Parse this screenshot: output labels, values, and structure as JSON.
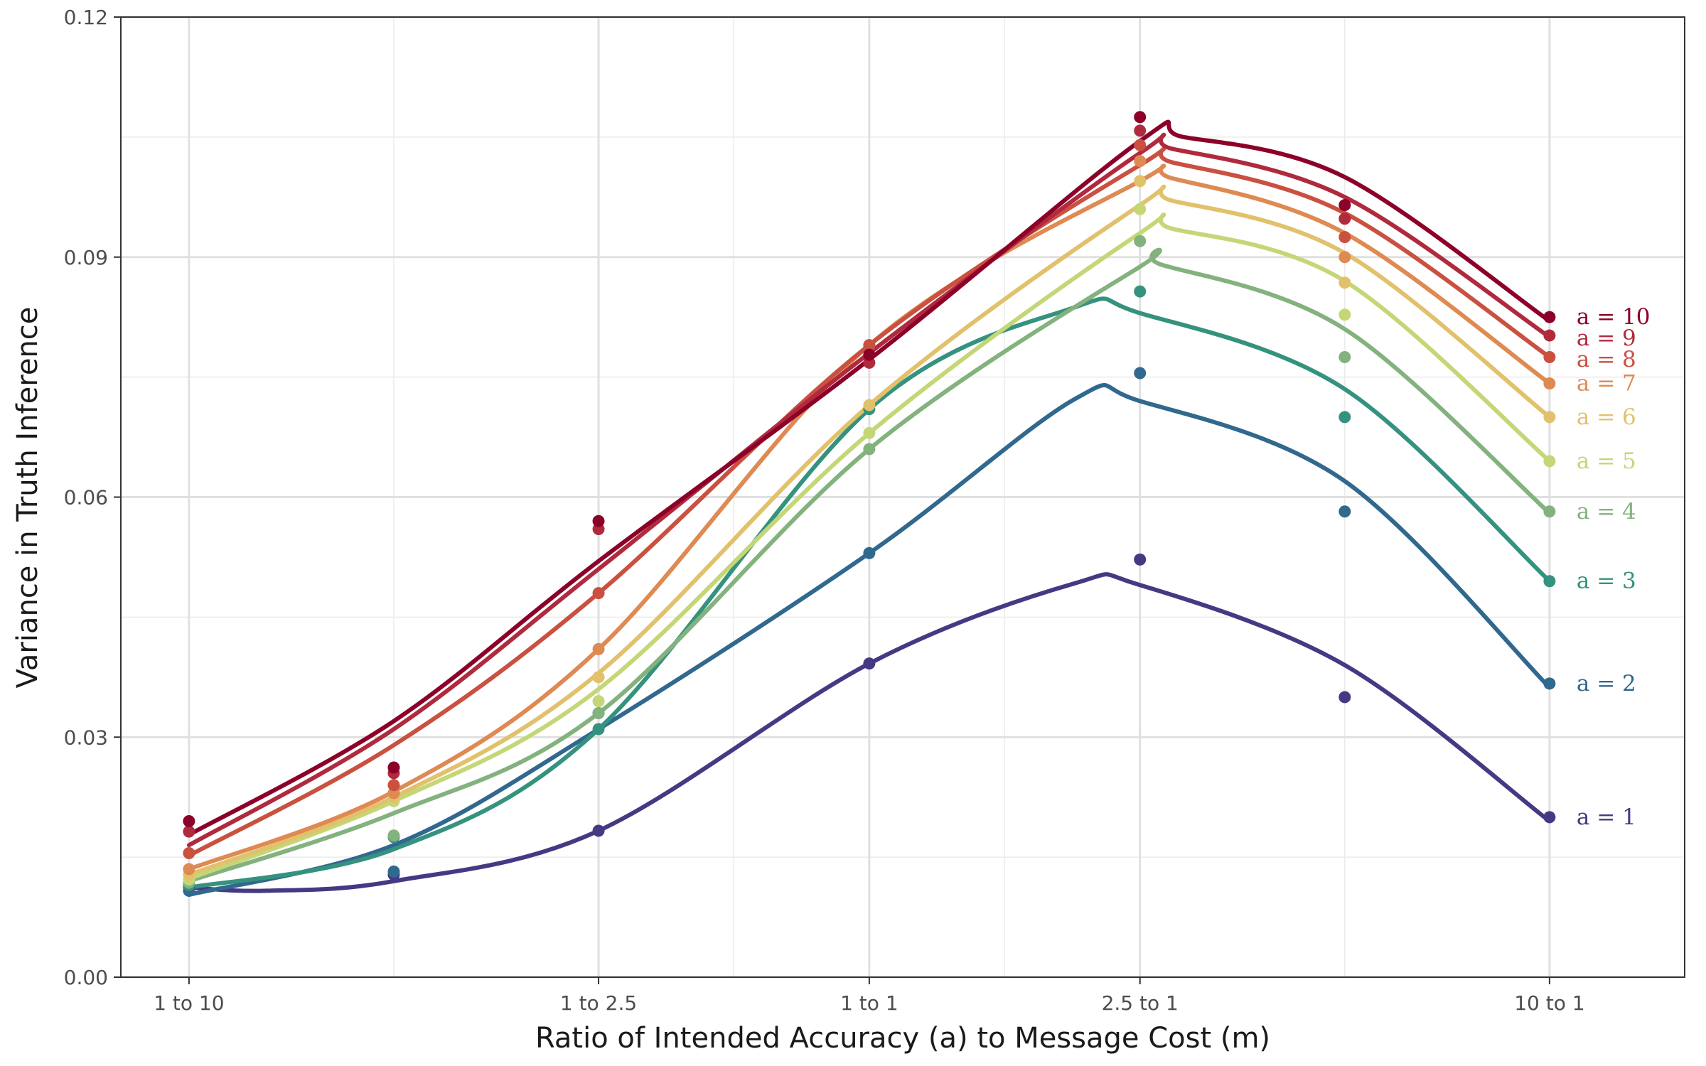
{
  "chart_data": {
    "type": "line",
    "xlabel": "Ratio of Intended Accuracy (a) to Message Cost (m)",
    "ylabel": "Variance in Truth Inference",
    "x_scale": "log10",
    "x_ticks": [
      {
        "value": 0.1,
        "label": "1 to 10"
      },
      {
        "value": 0.4,
        "label": "1 to 2.5"
      },
      {
        "value": 1,
        "label": "1 to 1"
      },
      {
        "value": 2.5,
        "label": "2.5 to 1"
      },
      {
        "value": 10,
        "label": "10 to 1"
      }
    ],
    "x_minor_gridlines": [
      0.2,
      0.632,
      1.58,
      5
    ],
    "y_ticks": [
      "0.00",
      "0.03",
      "0.06",
      "0.09",
      "0.12"
    ],
    "ylim": [
      0,
      0.12
    ],
    "xlim": [
      0.0794,
      15.8
    ],
    "grid": true,
    "legend": "direct labels at right end of each series",
    "x": [
      0.1,
      0.2,
      0.4,
      1,
      2.5,
      5,
      10
    ],
    "series": [
      {
        "name": "a = 1",
        "color": "#443A83",
        "points": [
          0.0113,
          0.0128,
          0.0183,
          0.0392,
          0.0522,
          0.035,
          0.02
        ],
        "curve": [
          [
            0.1,
            0.0112
          ],
          [
            0.13,
            0.0108
          ],
          [
            0.2,
            0.012
          ],
          [
            0.4,
            0.0183
          ],
          [
            1,
            0.0392
          ],
          [
            2,
            0.0492
          ],
          [
            2.5,
            0.049
          ],
          [
            5,
            0.039
          ],
          [
            10,
            0.0195
          ]
        ]
      },
      {
        "name": "a = 2",
        "color": "#31688E",
        "points": [
          0.0108,
          0.0132,
          0.033,
          0.053,
          0.0755,
          0.0582,
          0.0367
        ],
        "curve": [
          [
            0.1,
            0.0103
          ],
          [
            0.2,
            0.0165
          ],
          [
            0.4,
            0.031
          ],
          [
            1,
            0.053
          ],
          [
            2,
            0.0722
          ],
          [
            2.5,
            0.072
          ],
          [
            5,
            0.062
          ],
          [
            10,
            0.0362
          ]
        ]
      },
      {
        "name": "a = 3",
        "color": "#35927E",
        "points": [
          0.0115,
          0.0175,
          0.031,
          0.071,
          0.0857,
          0.07,
          0.0495
        ],
        "curve": [
          [
            0.1,
            0.0112
          ],
          [
            0.2,
            0.016
          ],
          [
            0.4,
            0.031
          ],
          [
            1,
            0.071
          ],
          [
            2,
            0.0837
          ],
          [
            2.5,
            0.083
          ],
          [
            5,
            0.0735
          ],
          [
            10,
            0.0495
          ]
        ]
      },
      {
        "name": "a = 4",
        "color": "#83B27E",
        "points": [
          0.0118,
          0.0177,
          0.033,
          0.066,
          0.092,
          0.0775,
          0.0582
        ],
        "curve": [
          [
            0.1,
            0.012
          ],
          [
            0.2,
            0.0205
          ],
          [
            0.4,
            0.033
          ],
          [
            1,
            0.066
          ],
          [
            2.5,
            0.0888
          ],
          [
            2.7,
            0.089
          ],
          [
            5,
            0.081
          ],
          [
            10,
            0.058
          ]
        ]
      },
      {
        "name": "a = 5",
        "color": "#C4D777",
        "points": [
          0.0122,
          0.022,
          0.0345,
          0.068,
          0.096,
          0.0828,
          0.0645
        ],
        "curve": [
          [
            0.1,
            0.0123
          ],
          [
            0.2,
            0.022
          ],
          [
            0.4,
            0.036
          ],
          [
            1,
            0.068
          ],
          [
            2.5,
            0.093
          ],
          [
            2.8,
            0.0935
          ],
          [
            5,
            0.087
          ],
          [
            10,
            0.0645
          ]
        ]
      },
      {
        "name": "a = 6",
        "color": "#E2C16C",
        "points": [
          0.0128,
          0.0225,
          0.0375,
          0.0715,
          0.0995,
          0.0868,
          0.07
        ],
        "curve": [
          [
            0.1,
            0.0128
          ],
          [
            0.2,
            0.0225
          ],
          [
            0.4,
            0.038
          ],
          [
            1,
            0.0715
          ],
          [
            2.5,
            0.0965
          ],
          [
            2.8,
            0.097
          ],
          [
            5,
            0.0905
          ],
          [
            10,
            0.07
          ]
        ]
      },
      {
        "name": "a = 7",
        "color": "#DE8A52",
        "points": [
          0.0135,
          0.023,
          0.041,
          0.079,
          0.102,
          0.09,
          0.0742
        ],
        "curve": [
          [
            0.1,
            0.0135
          ],
          [
            0.2,
            0.0232
          ],
          [
            0.4,
            0.041
          ],
          [
            1,
            0.079
          ],
          [
            2.5,
            0.0995
          ],
          [
            2.8,
            0.0998
          ],
          [
            5,
            0.093
          ],
          [
            10,
            0.0742
          ]
        ]
      },
      {
        "name": "a = 8",
        "color": "#CA5040",
        "points": [
          0.0155,
          0.024,
          0.048,
          0.079,
          0.104,
          0.0925,
          0.0775
        ],
        "curve": [
          [
            0.1,
            0.0152
          ],
          [
            0.2,
            0.029
          ],
          [
            0.4,
            0.048
          ],
          [
            1,
            0.079
          ],
          [
            2.5,
            0.1015
          ],
          [
            2.8,
            0.1018
          ],
          [
            5,
            0.0955
          ],
          [
            10,
            0.0775
          ]
        ]
      },
      {
        "name": "a = 9",
        "color": "#B02A3E",
        "points": [
          0.0182,
          0.0255,
          0.056,
          0.0768,
          0.1058,
          0.0948,
          0.0802
        ],
        "curve": [
          [
            0.1,
            0.0165
          ],
          [
            0.2,
            0.031
          ],
          [
            0.4,
            0.051
          ],
          [
            1,
            0.078
          ],
          [
            2.5,
            0.103
          ],
          [
            2.8,
            0.1035
          ],
          [
            5,
            0.0975
          ],
          [
            10,
            0.08
          ]
        ]
      },
      {
        "name": "a = 10",
        "color": "#8C0129",
        "points": [
          0.0195,
          0.0262,
          0.057,
          0.0778,
          0.1075,
          0.0965,
          0.0825
        ],
        "curve": [
          [
            0.1,
            0.0178
          ],
          [
            0.2,
            0.032
          ],
          [
            0.4,
            0.052
          ],
          [
            1,
            0.0772
          ],
          [
            2.5,
            0.1045
          ],
          [
            2.9,
            0.105
          ],
          [
            5,
            0.1
          ],
          [
            10,
            0.082
          ]
        ]
      }
    ]
  }
}
